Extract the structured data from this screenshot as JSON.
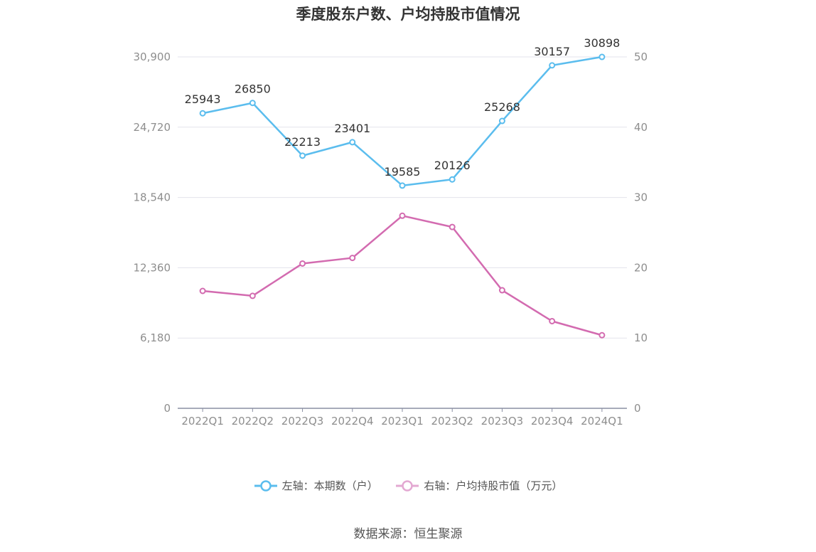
{
  "title": "季度股东户数、户均持股市值情况",
  "source": "数据来源：恒生聚源",
  "colors": {
    "left_series": "#5bbdee",
    "right_series": "#d36bb0",
    "grid": "#e3e3ec",
    "axis": "#8a8fa3",
    "tick": "#8e8e8e",
    "label": "#333333"
  },
  "legend": [
    {
      "label": "左轴：本期数（户）",
      "color": "#5bbdee"
    },
    {
      "label": "右轴：户均持股市值（万元）",
      "color": "#d36bb0"
    }
  ],
  "chart_data": {
    "type": "line",
    "title": "季度股东户数、户均持股市值情况",
    "categories": [
      "2022Q1",
      "2022Q2",
      "2022Q3",
      "2022Q4",
      "2023Q1",
      "2023Q2",
      "2023Q3",
      "2023Q4",
      "2024Q1"
    ],
    "left_axis": {
      "ticks": [
        "0",
        "6,180",
        "12,360",
        "18,540",
        "24,720",
        "30,900"
      ],
      "ylim": [
        0,
        30900
      ]
    },
    "right_axis": {
      "ticks": [
        "0",
        "10",
        "20",
        "30",
        "40",
        "50"
      ],
      "ylim": [
        0,
        50
      ]
    },
    "series": [
      {
        "name": "左轴：本期数（户）",
        "axis": "left",
        "values": [
          25943,
          26850,
          22213,
          23401,
          19585,
          20126,
          25268,
          30157,
          30898
        ],
        "labels": [
          "25943",
          "26850",
          "22213",
          "23401",
          "19585",
          "20126",
          "25268",
          "30157",
          "30898"
        ]
      },
      {
        "name": "右轴：户均持股市值（万元）",
        "axis": "right",
        "values": [
          16.7,
          16.0,
          20.6,
          21.4,
          27.4,
          25.8,
          16.8,
          12.4,
          10.4
        ]
      }
    ],
    "grid": true,
    "legend_position": "bottom"
  }
}
